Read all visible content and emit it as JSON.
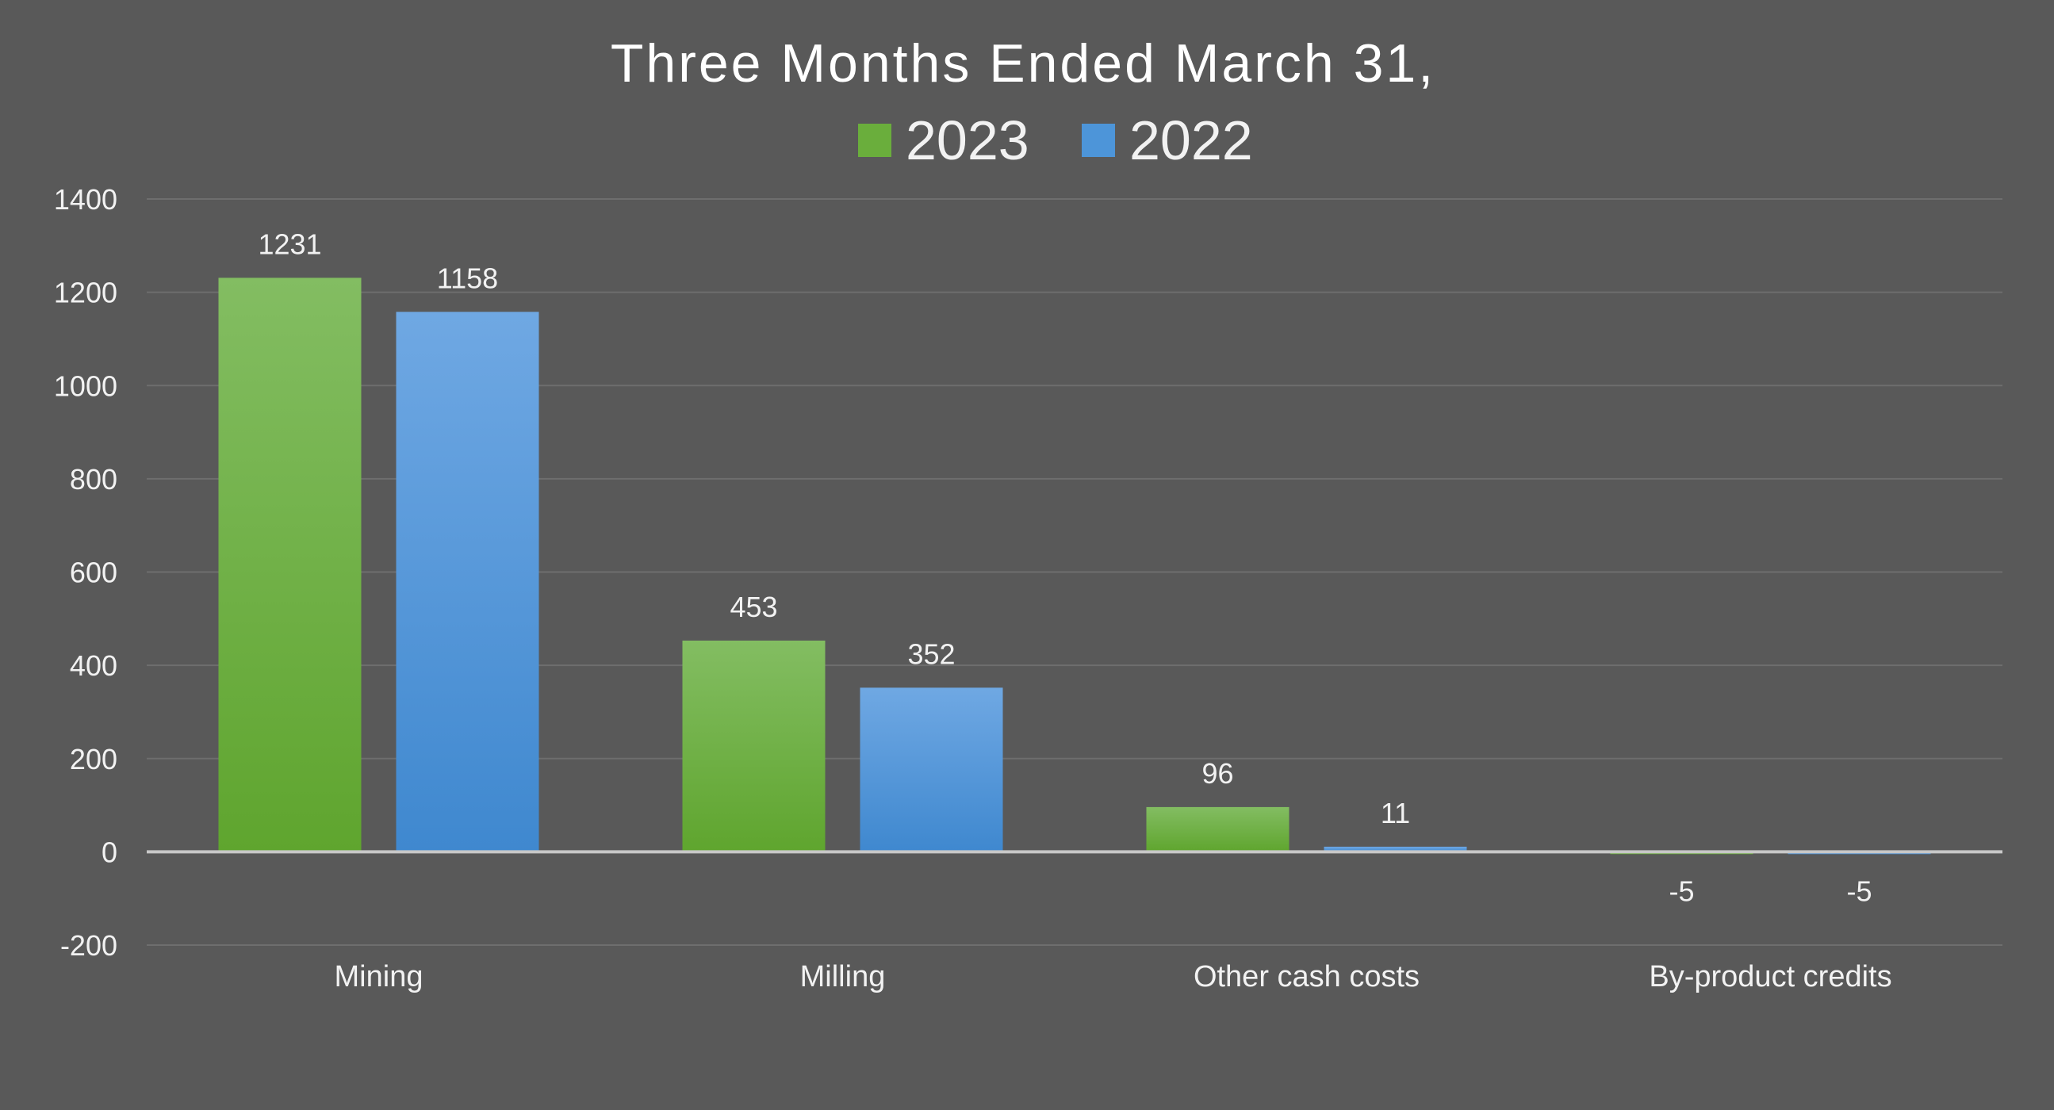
{
  "chart_data": {
    "type": "bar",
    "title": "Three Months Ended March 31,",
    "categories": [
      "Mining",
      "Milling",
      "Other cash costs",
      "By-product credits"
    ],
    "series": [
      {
        "name": "2023",
        "values": [
          1231,
          453,
          96,
          -5
        ],
        "color": "#6aae3c"
      },
      {
        "name": "2022",
        "values": [
          1158,
          352,
          11,
          -5
        ],
        "color": "#4d95d9"
      }
    ],
    "ylim": [
      -200,
      1400
    ],
    "yticks": [
      -200,
      0,
      200,
      400,
      600,
      800,
      1000,
      1200,
      1400
    ],
    "grid": true,
    "legend_position": "top",
    "data_labels": true
  }
}
